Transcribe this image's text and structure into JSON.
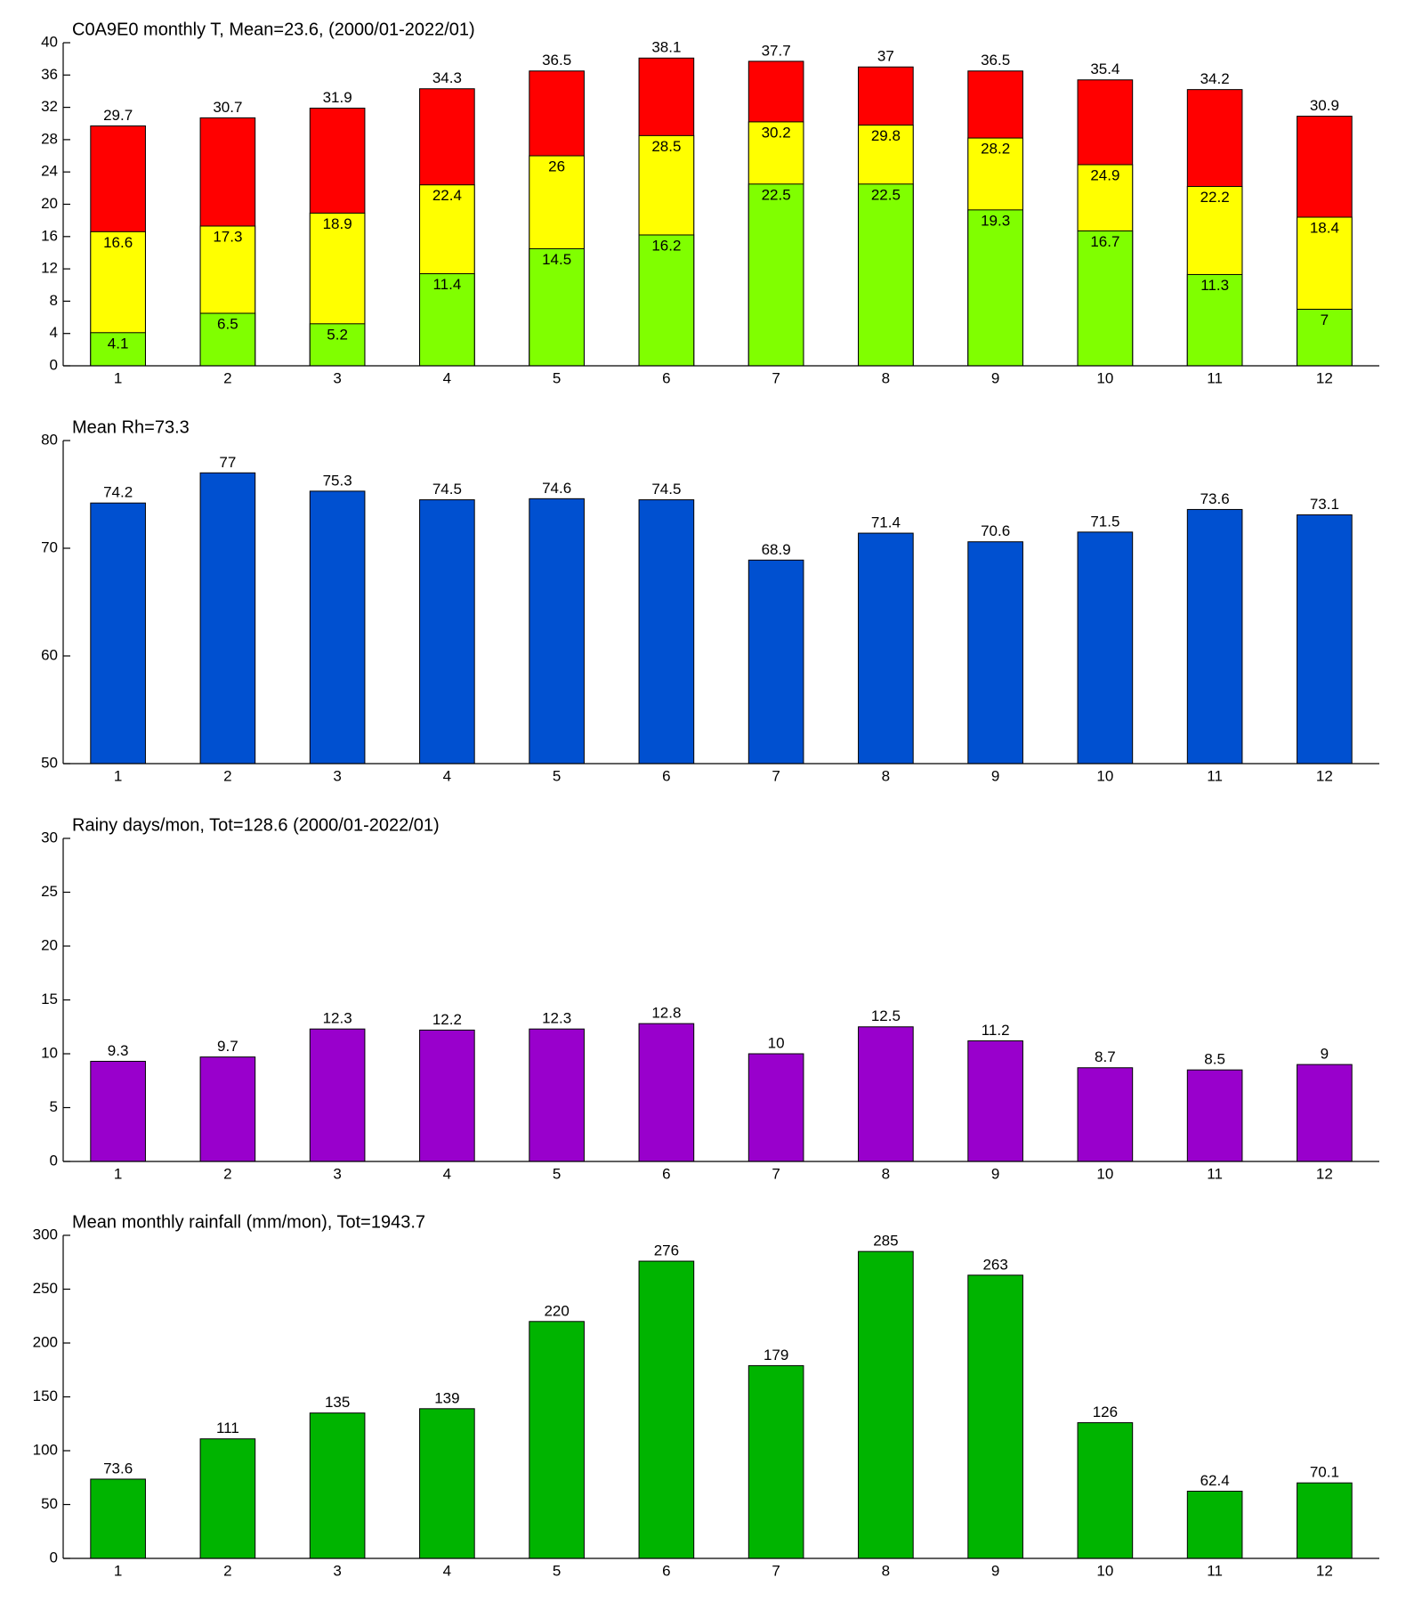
{
  "chart_data": [
    {
      "type": "bar",
      "barmode": "overlay",
      "title": "C0A9E0 monthly T, Mean=23.6, (2000/01-2022/01)",
      "categories": [
        "1",
        "2",
        "3",
        "4",
        "5",
        "6",
        "7",
        "8",
        "9",
        "10",
        "11",
        "12"
      ],
      "series": [
        {
          "color": "#ff0000",
          "values": [
            29.7,
            30.7,
            31.9,
            34.3,
            36.5,
            38.1,
            37.7,
            37,
            36.5,
            35.4,
            34.2,
            30.9
          ]
        },
        {
          "color": "#ffff00",
          "values": [
            16.6,
            17.3,
            18.9,
            22.4,
            26,
            28.5,
            30.2,
            29.8,
            28.2,
            24.9,
            22.2,
            18.4
          ]
        },
        {
          "color": "#80ff00",
          "values": [
            4.1,
            6.5,
            5.2,
            11.4,
            14.5,
            16.2,
            22.5,
            22.5,
            19.3,
            16.7,
            11.3,
            7
          ]
        }
      ],
      "ylim": [
        0,
        40
      ],
      "yticks": [
        0,
        4,
        8,
        12,
        16,
        20,
        24,
        28,
        32,
        36,
        40
      ]
    },
    {
      "type": "bar",
      "title": "Mean Rh=73.3",
      "categories": [
        "1",
        "2",
        "3",
        "4",
        "5",
        "6",
        "7",
        "8",
        "9",
        "10",
        "11",
        "12"
      ],
      "values": [
        74.2,
        77,
        75.3,
        74.5,
        74.6,
        74.5,
        68.9,
        71.4,
        70.6,
        71.5,
        73.6,
        73.1
      ],
      "color": "#0050d0",
      "ylim": [
        50,
        80
      ],
      "yticks": [
        50,
        60,
        70,
        80
      ]
    },
    {
      "type": "bar",
      "title": "Rainy days/mon, Tot=128.6 (2000/01-2022/01)",
      "categories": [
        "1",
        "2",
        "3",
        "4",
        "5",
        "6",
        "7",
        "8",
        "9",
        "10",
        "11",
        "12"
      ],
      "values": [
        9.3,
        9.7,
        12.3,
        12.2,
        12.3,
        12.8,
        10,
        12.5,
        11.2,
        8.7,
        8.5,
        9
      ],
      "color": "#9900cc",
      "ylim": [
        0,
        30
      ],
      "yticks": [
        0,
        5,
        10,
        15,
        20,
        25,
        30
      ]
    },
    {
      "type": "bar",
      "title": "Mean monthly rainfall (mm/mon), Tot=1943.7",
      "categories": [
        "1",
        "2",
        "3",
        "4",
        "5",
        "6",
        "7",
        "8",
        "9",
        "10",
        "11",
        "12"
      ],
      "values": [
        73.6,
        111,
        135,
        139,
        220,
        276,
        179,
        285,
        263,
        126,
        62.4,
        70.1
      ],
      "color": "#00b400",
      "ylim": [
        0,
        300
      ],
      "yticks": [
        0,
        50,
        100,
        150,
        200,
        250,
        300
      ]
    }
  ]
}
